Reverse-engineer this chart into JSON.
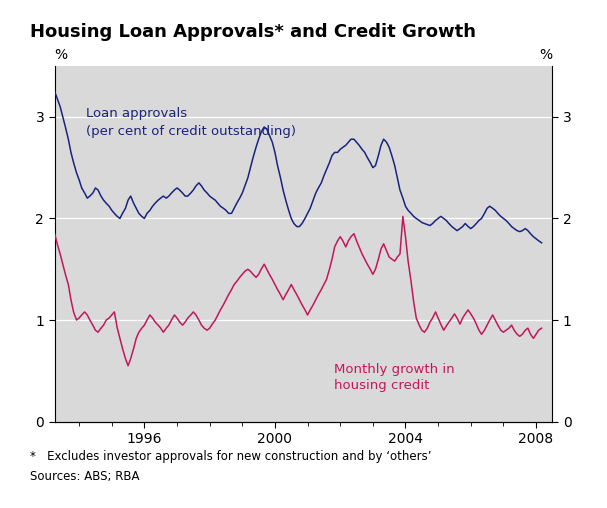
{
  "title": "Housing Loan Approvals* and Credit Growth",
  "ylabel_left": "%",
  "ylabel_right": "%",
  "footnote_line1": "*   Excludes investor approvals for new construction and by ‘others’",
  "footnote_line2": "Sources: ABS; RBA",
  "ylim": [
    0,
    3.5
  ],
  "yticks": [
    0,
    1,
    2,
    3
  ],
  "xlim_start": 1993.25,
  "xlim_end": 2008.5,
  "xticks": [
    1996,
    2000,
    2004,
    2008
  ],
  "blue_color": "#1a237e",
  "pink_color": "#c2185b",
  "background_color": "#d9d9d9",
  "loan_approvals_label_line1": "Loan approvals",
  "loan_approvals_label_line2": "(per cent of credit outstanding)",
  "credit_growth_label_line1": "Monthly growth in",
  "credit_growth_label_line2": "housing credit",
  "loan_approvals_dates": [
    1993.25,
    1993.33,
    1993.42,
    1993.5,
    1993.58,
    1993.67,
    1993.75,
    1993.83,
    1993.92,
    1994.0,
    1994.08,
    1994.17,
    1994.25,
    1994.33,
    1994.42,
    1994.5,
    1994.58,
    1994.67,
    1994.75,
    1994.83,
    1994.92,
    1995.0,
    1995.08,
    1995.17,
    1995.25,
    1995.33,
    1995.42,
    1995.5,
    1995.58,
    1995.67,
    1995.75,
    1995.83,
    1995.92,
    1996.0,
    1996.08,
    1996.17,
    1996.25,
    1996.33,
    1996.42,
    1996.5,
    1996.58,
    1996.67,
    1996.75,
    1996.83,
    1996.92,
    1997.0,
    1997.08,
    1997.17,
    1997.25,
    1997.33,
    1997.42,
    1997.5,
    1997.58,
    1997.67,
    1997.75,
    1997.83,
    1997.92,
    1998.0,
    1998.08,
    1998.17,
    1998.25,
    1998.33,
    1998.42,
    1998.5,
    1998.58,
    1998.67,
    1998.75,
    1998.83,
    1998.92,
    1999.0,
    1999.08,
    1999.17,
    1999.25,
    1999.33,
    1999.42,
    1999.5,
    1999.58,
    1999.67,
    1999.75,
    1999.83,
    1999.92,
    2000.0,
    2000.08,
    2000.17,
    2000.25,
    2000.33,
    2000.42,
    2000.5,
    2000.58,
    2000.67,
    2000.75,
    2000.83,
    2000.92,
    2001.0,
    2001.08,
    2001.17,
    2001.25,
    2001.33,
    2001.42,
    2001.5,
    2001.58,
    2001.67,
    2001.75,
    2001.83,
    2001.92,
    2002.0,
    2002.08,
    2002.17,
    2002.25,
    2002.33,
    2002.42,
    2002.5,
    2002.58,
    2002.67,
    2002.75,
    2002.83,
    2002.92,
    2003.0,
    2003.08,
    2003.17,
    2003.25,
    2003.33,
    2003.42,
    2003.5,
    2003.58,
    2003.67,
    2003.75,
    2003.83,
    2003.92,
    2004.0,
    2004.08,
    2004.17,
    2004.25,
    2004.33,
    2004.42,
    2004.5,
    2004.58,
    2004.67,
    2004.75,
    2004.83,
    2004.92,
    2005.0,
    2005.08,
    2005.17,
    2005.25,
    2005.33,
    2005.42,
    2005.5,
    2005.58,
    2005.67,
    2005.75,
    2005.83,
    2005.92,
    2006.0,
    2006.08,
    2006.17,
    2006.25,
    2006.33,
    2006.42,
    2006.5,
    2006.58,
    2006.67,
    2006.75,
    2006.83,
    2006.92,
    2007.0,
    2007.08,
    2007.17,
    2007.25,
    2007.33,
    2007.42,
    2007.5,
    2007.58,
    2007.67,
    2007.75,
    2007.83,
    2007.92,
    2008.0,
    2008.08,
    2008.17
  ],
  "loan_approvals_values": [
    3.25,
    3.18,
    3.1,
    3.0,
    2.9,
    2.78,
    2.65,
    2.55,
    2.45,
    2.38,
    2.3,
    2.25,
    2.2,
    2.22,
    2.25,
    2.3,
    2.28,
    2.22,
    2.18,
    2.15,
    2.12,
    2.08,
    2.05,
    2.02,
    2.0,
    2.05,
    2.1,
    2.18,
    2.22,
    2.15,
    2.1,
    2.05,
    2.02,
    2.0,
    2.05,
    2.08,
    2.12,
    2.15,
    2.18,
    2.2,
    2.22,
    2.2,
    2.22,
    2.25,
    2.28,
    2.3,
    2.28,
    2.25,
    2.22,
    2.22,
    2.25,
    2.28,
    2.32,
    2.35,
    2.32,
    2.28,
    2.25,
    2.22,
    2.2,
    2.18,
    2.15,
    2.12,
    2.1,
    2.08,
    2.05,
    2.05,
    2.1,
    2.15,
    2.2,
    2.25,
    2.32,
    2.4,
    2.5,
    2.6,
    2.7,
    2.78,
    2.85,
    2.9,
    2.88,
    2.82,
    2.75,
    2.65,
    2.52,
    2.4,
    2.28,
    2.18,
    2.08,
    2.0,
    1.95,
    1.92,
    1.92,
    1.95,
    2.0,
    2.05,
    2.1,
    2.18,
    2.25,
    2.3,
    2.35,
    2.42,
    2.48,
    2.55,
    2.62,
    2.65,
    2.65,
    2.68,
    2.7,
    2.72,
    2.75,
    2.78,
    2.78,
    2.75,
    2.72,
    2.68,
    2.65,
    2.6,
    2.55,
    2.5,
    2.52,
    2.62,
    2.72,
    2.78,
    2.75,
    2.7,
    2.62,
    2.52,
    2.4,
    2.28,
    2.2,
    2.12,
    2.08,
    2.05,
    2.02,
    2.0,
    1.98,
    1.96,
    1.95,
    1.94,
    1.93,
    1.95,
    1.98,
    2.0,
    2.02,
    2.0,
    1.98,
    1.95,
    1.92,
    1.9,
    1.88,
    1.9,
    1.92,
    1.95,
    1.92,
    1.9,
    1.92,
    1.95,
    1.98,
    2.0,
    2.05,
    2.1,
    2.12,
    2.1,
    2.08,
    2.05,
    2.02,
    2.0,
    1.98,
    1.95,
    1.92,
    1.9,
    1.88,
    1.87,
    1.88,
    1.9,
    1.88,
    1.85,
    1.82,
    1.8,
    1.78,
    1.76
  ],
  "credit_growth_dates": [
    1993.25,
    1993.33,
    1993.42,
    1993.5,
    1993.58,
    1993.67,
    1993.75,
    1993.83,
    1993.92,
    1994.0,
    1994.08,
    1994.17,
    1994.25,
    1994.33,
    1994.42,
    1994.5,
    1994.58,
    1994.67,
    1994.75,
    1994.83,
    1994.92,
    1995.0,
    1995.08,
    1995.17,
    1995.25,
    1995.33,
    1995.42,
    1995.5,
    1995.58,
    1995.67,
    1995.75,
    1995.83,
    1995.92,
    1996.0,
    1996.08,
    1996.17,
    1996.25,
    1996.33,
    1996.42,
    1996.5,
    1996.58,
    1996.67,
    1996.75,
    1996.83,
    1996.92,
    1997.0,
    1997.08,
    1997.17,
    1997.25,
    1997.33,
    1997.42,
    1997.5,
    1997.58,
    1997.67,
    1997.75,
    1997.83,
    1997.92,
    1998.0,
    1998.08,
    1998.17,
    1998.25,
    1998.33,
    1998.42,
    1998.5,
    1998.58,
    1998.67,
    1998.75,
    1998.83,
    1998.92,
    1999.0,
    1999.08,
    1999.17,
    1999.25,
    1999.33,
    1999.42,
    1999.5,
    1999.58,
    1999.67,
    1999.75,
    1999.83,
    1999.92,
    2000.0,
    2000.08,
    2000.17,
    2000.25,
    2000.33,
    2000.42,
    2000.5,
    2000.58,
    2000.67,
    2000.75,
    2000.83,
    2000.92,
    2001.0,
    2001.08,
    2001.17,
    2001.25,
    2001.33,
    2001.42,
    2001.5,
    2001.58,
    2001.67,
    2001.75,
    2001.83,
    2001.92,
    2002.0,
    2002.08,
    2002.17,
    2002.25,
    2002.33,
    2002.42,
    2002.5,
    2002.58,
    2002.67,
    2002.75,
    2002.83,
    2002.92,
    2003.0,
    2003.08,
    2003.17,
    2003.25,
    2003.33,
    2003.42,
    2003.5,
    2003.58,
    2003.67,
    2003.75,
    2003.83,
    2003.92,
    2004.0,
    2004.08,
    2004.17,
    2004.25,
    2004.33,
    2004.42,
    2004.5,
    2004.58,
    2004.67,
    2004.75,
    2004.83,
    2004.92,
    2005.0,
    2005.08,
    2005.17,
    2005.25,
    2005.33,
    2005.42,
    2005.5,
    2005.58,
    2005.67,
    2005.75,
    2005.83,
    2005.92,
    2006.0,
    2006.08,
    2006.17,
    2006.25,
    2006.33,
    2006.42,
    2006.5,
    2006.58,
    2006.67,
    2006.75,
    2006.83,
    2006.92,
    2007.0,
    2007.08,
    2007.17,
    2007.25,
    2007.33,
    2007.42,
    2007.5,
    2007.58,
    2007.67,
    2007.75,
    2007.83,
    2007.92,
    2008.0,
    2008.08,
    2008.17
  ],
  "credit_growth_values": [
    1.85,
    1.75,
    1.65,
    1.55,
    1.45,
    1.35,
    1.2,
    1.08,
    1.0,
    1.02,
    1.05,
    1.08,
    1.05,
    1.0,
    0.95,
    0.9,
    0.88,
    0.92,
    0.95,
    1.0,
    1.02,
    1.05,
    1.08,
    0.92,
    0.82,
    0.72,
    0.62,
    0.55,
    0.62,
    0.72,
    0.82,
    0.88,
    0.92,
    0.95,
    1.0,
    1.05,
    1.02,
    0.98,
    0.95,
    0.92,
    0.88,
    0.92,
    0.95,
    1.0,
    1.05,
    1.02,
    0.98,
    0.95,
    0.98,
    1.02,
    1.05,
    1.08,
    1.05,
    1.0,
    0.95,
    0.92,
    0.9,
    0.92,
    0.96,
    1.0,
    1.05,
    1.1,
    1.15,
    1.2,
    1.25,
    1.3,
    1.35,
    1.38,
    1.42,
    1.45,
    1.48,
    1.5,
    1.48,
    1.45,
    1.42,
    1.45,
    1.5,
    1.55,
    1.5,
    1.45,
    1.4,
    1.35,
    1.3,
    1.25,
    1.2,
    1.25,
    1.3,
    1.35,
    1.3,
    1.25,
    1.2,
    1.15,
    1.1,
    1.05,
    1.1,
    1.15,
    1.2,
    1.25,
    1.3,
    1.35,
    1.4,
    1.5,
    1.6,
    1.72,
    1.78,
    1.82,
    1.78,
    1.72,
    1.78,
    1.82,
    1.85,
    1.78,
    1.72,
    1.65,
    1.6,
    1.55,
    1.5,
    1.45,
    1.5,
    1.6,
    1.7,
    1.75,
    1.68,
    1.62,
    1.6,
    1.58,
    1.62,
    1.65,
    2.02,
    1.82,
    1.58,
    1.38,
    1.18,
    1.02,
    0.95,
    0.9,
    0.88,
    0.92,
    0.98,
    1.02,
    1.08,
    1.02,
    0.96,
    0.9,
    0.94,
    0.98,
    1.02,
    1.06,
    1.02,
    0.96,
    1.02,
    1.06,
    1.1,
    1.06,
    1.02,
    0.96,
    0.9,
    0.86,
    0.9,
    0.95,
    1.0,
    1.05,
    1.0,
    0.95,
    0.9,
    0.88,
    0.9,
    0.92,
    0.95,
    0.9,
    0.86,
    0.84,
    0.86,
    0.9,
    0.92,
    0.86,
    0.82,
    0.86,
    0.9,
    0.92
  ]
}
